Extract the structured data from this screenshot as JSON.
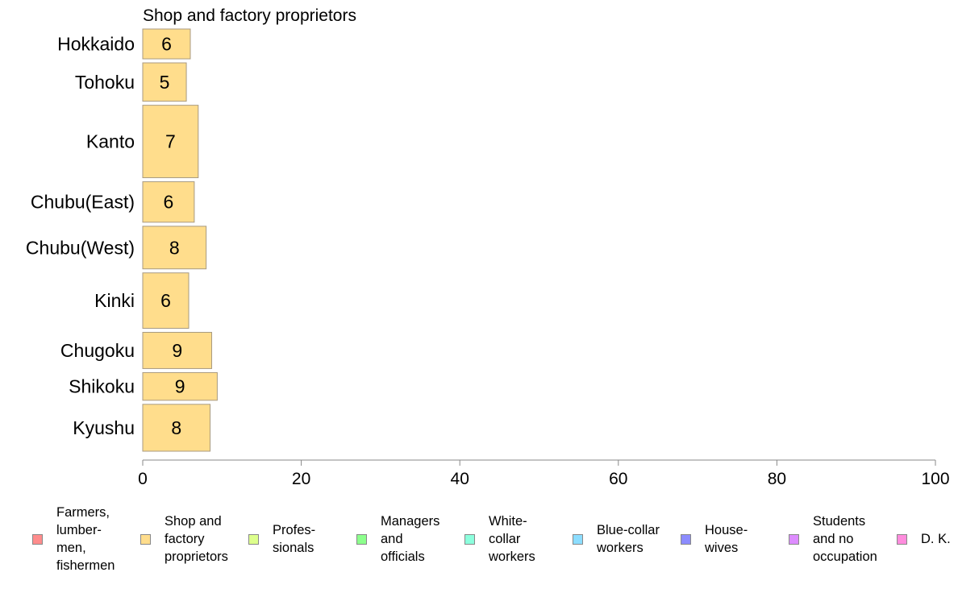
{
  "chart_data": {
    "type": "bar",
    "orientation": "horizontal",
    "title": "Shop and factory proprietors",
    "categories": [
      "Hokkaido",
      "Tohoku",
      "Kanto",
      "Chubu(East)",
      "Chubu(West)",
      "Kinki",
      "Chugoku",
      "Shikoku",
      "Kyushu"
    ],
    "category_weights": [
      0.7,
      0.9,
      1.7,
      0.95,
      1.0,
      1.3,
      0.85,
      0.65,
      1.1
    ],
    "series": [
      {
        "name": "Shop and factory proprietors",
        "values": [
          6,
          5.5,
          7,
          6.5,
          8,
          5.8,
          8.7,
          9.4,
          8.5
        ],
        "labels": [
          "6",
          "5",
          "7",
          "6",
          "8",
          "6",
          "9",
          "9",
          "8"
        ],
        "color": "#ffdd8c"
      }
    ],
    "xlim": [
      0,
      100
    ],
    "xticks": [
      "0",
      "20",
      "40",
      "60",
      "80",
      "100"
    ],
    "grid": false,
    "legend_position": "bottom",
    "legend": [
      {
        "label": "Farmers,\nlumber-\nmen,\nfishermen",
        "color": "#ff8c8c"
      },
      {
        "label": "Shop and\nfactory\nproprietors",
        "color": "#ffdd8c"
      },
      {
        "label": "Profes-\nsionals",
        "color": "#ddff8c"
      },
      {
        "label": "Managers\nand\nofficials",
        "color": "#8cff8c"
      },
      {
        "label": "White-\ncollar\nworkers",
        "color": "#8cffdd"
      },
      {
        "label": "Blue-collar\nworkers",
        "color": "#8cddff"
      },
      {
        "label": "House-\nwives",
        "color": "#8c8cff"
      },
      {
        "label": "Students\nand no\noccupation",
        "color": "#dd8cff"
      },
      {
        "label": "D. K.",
        "color": "#ff8cdd"
      }
    ]
  }
}
